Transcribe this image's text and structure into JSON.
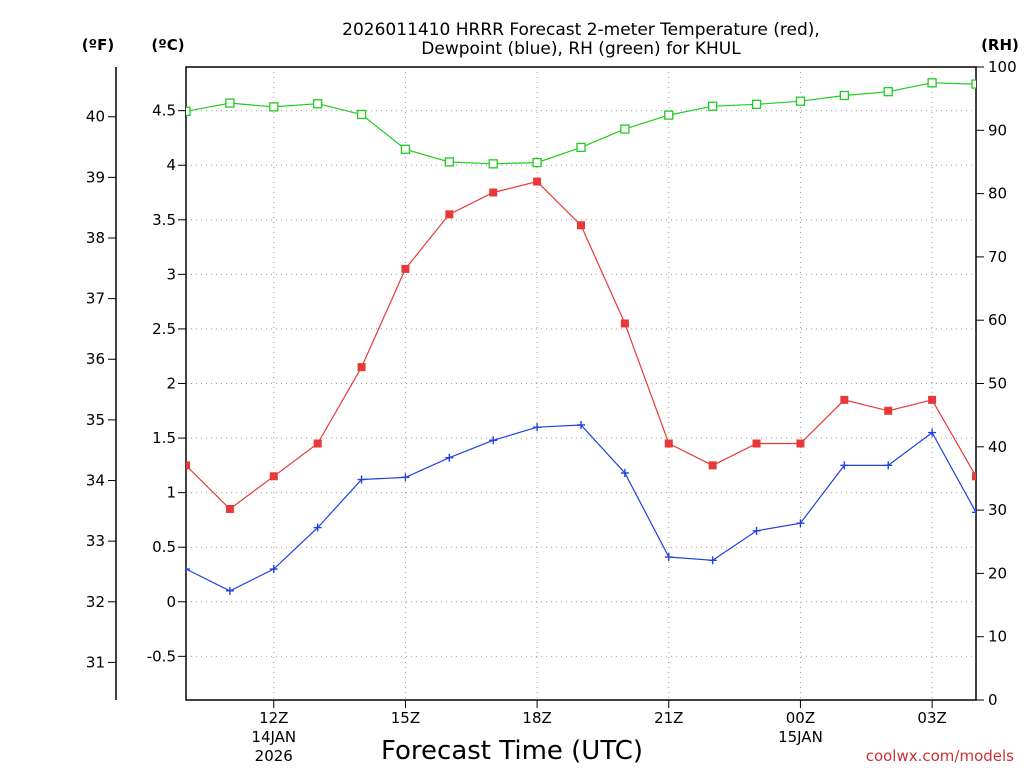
{
  "chart_data": {
    "type": "line",
    "title_line1": "2026011410 HRRR Forecast 2-meter Temperature (red),",
    "title_line2": "Dewpoint (blue), RH (green) for KHUL",
    "xlabel": "Forecast Time (UTC)",
    "credit": "coolwx.com/models",
    "units": {
      "fahrenheit": "(ºF)",
      "celsius": "(ºC)",
      "rh": "(RH)"
    },
    "x_hours": [
      10,
      11,
      12,
      13,
      14,
      15,
      16,
      17,
      18,
      19,
      20,
      21,
      22,
      23,
      24,
      25,
      26,
      27,
      28
    ],
    "xlim": [
      10,
      28
    ],
    "x_ticks": [
      {
        "h": 12,
        "label": "12Z",
        "sub1": "14JAN",
        "sub2": "2026"
      },
      {
        "h": 15,
        "label": "15Z",
        "sub1": "",
        "sub2": ""
      },
      {
        "h": 18,
        "label": "18Z",
        "sub1": "",
        "sub2": ""
      },
      {
        "h": 21,
        "label": "21Z",
        "sub1": "",
        "sub2": ""
      },
      {
        "h": 24,
        "label": "00Z",
        "sub1": "15JAN",
        "sub2": ""
      },
      {
        "h": 27,
        "label": "03Z",
        "sub1": "",
        "sub2": ""
      }
    ],
    "celsius_axis": {
      "ylim": [
        -0.9,
        4.9
      ],
      "ticks": [
        "-0.5",
        "0",
        "0.5",
        "1",
        "1.5",
        "2",
        "2.5",
        "3",
        "3.5",
        "4",
        "4.5"
      ]
    },
    "fahrenheit_axis": {
      "ticks": [
        "31",
        "32",
        "33",
        "34",
        "35",
        "36",
        "37",
        "38",
        "39",
        "40"
      ]
    },
    "rh_axis": {
      "ylim": [
        0,
        100
      ],
      "ticks": [
        "0",
        "10",
        "20",
        "30",
        "40",
        "50",
        "60",
        "70",
        "80",
        "90",
        "100"
      ]
    },
    "series": [
      {
        "name": "Temperature",
        "axis": "celsius",
        "color": "#e83838",
        "marker": "filled-square",
        "values": [
          1.25,
          0.85,
          1.15,
          1.45,
          2.15,
          3.05,
          3.55,
          3.75,
          3.85,
          3.45,
          2.55,
          1.45,
          1.25,
          1.45,
          1.45,
          1.85,
          1.75,
          1.85,
          1.15
        ]
      },
      {
        "name": "Dewpoint",
        "axis": "celsius",
        "color": "#2040e0",
        "marker": "plus",
        "values": [
          0.3,
          0.1,
          0.3,
          0.68,
          1.12,
          1.14,
          1.32,
          1.48,
          1.6,
          1.62,
          1.18,
          0.41,
          0.38,
          0.65,
          0.72,
          1.25,
          1.25,
          1.55,
          0.82
        ]
      },
      {
        "name": "RH",
        "axis": "rh",
        "color": "#20cc20",
        "marker": "open-square",
        "values": [
          93,
          94.3,
          93.7,
          94.2,
          92.5,
          87,
          85,
          84.7,
          84.9,
          87.3,
          90.2,
          92.4,
          93.8,
          94.1,
          94.6,
          95.5,
          96.1,
          97.5,
          97.3
        ]
      }
    ]
  }
}
